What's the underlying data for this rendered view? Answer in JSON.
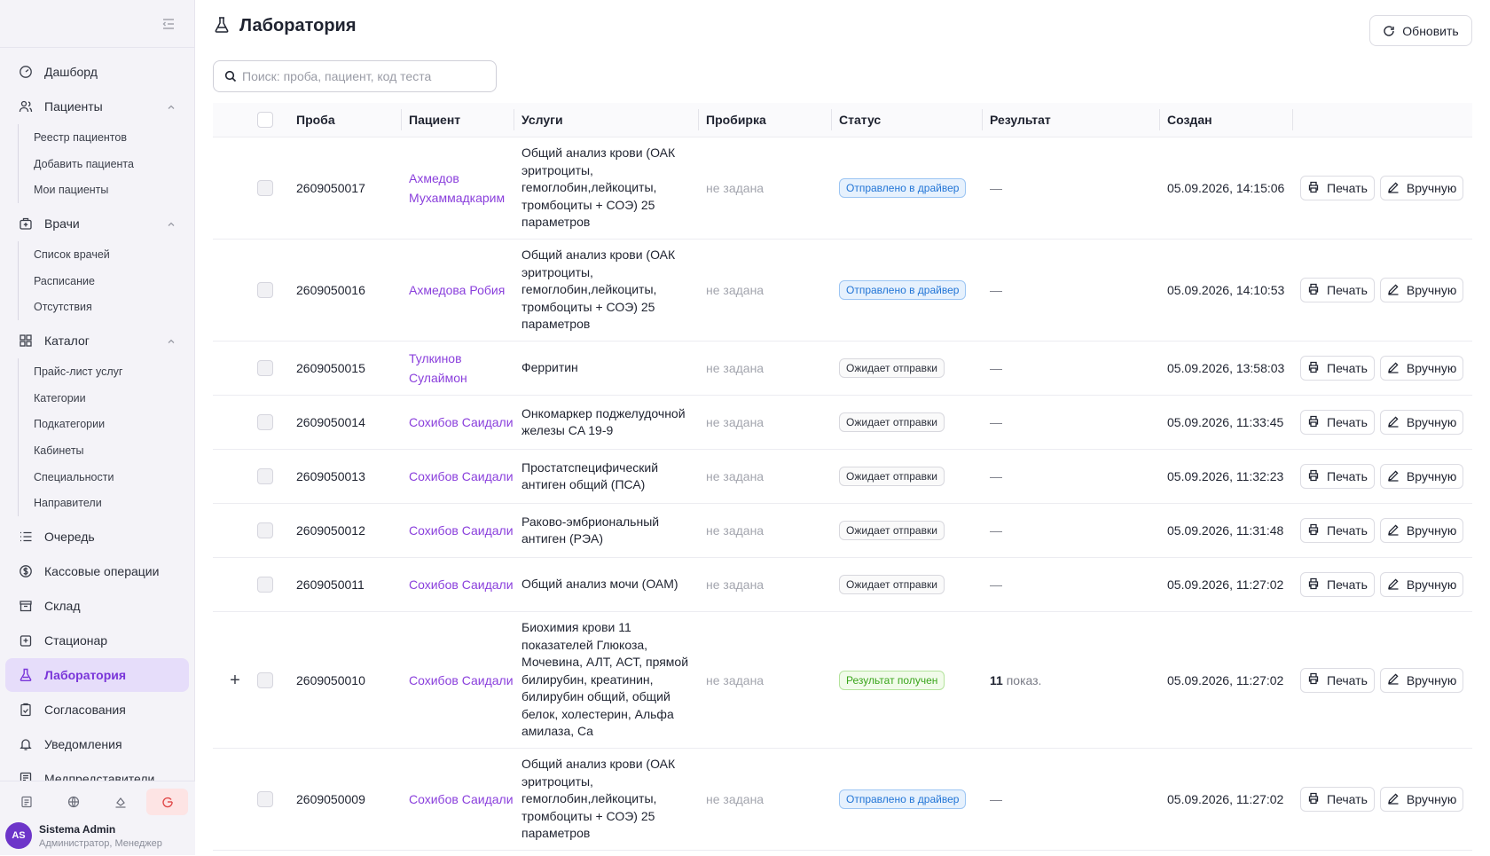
{
  "sidebar": {
    "items": [
      {
        "label": "Дашборд",
        "icon": "gauge-icon"
      },
      {
        "label": "Пациенты",
        "icon": "users-icon",
        "expanded": true,
        "sub": [
          "Реестр пациентов",
          "Добавить пациента",
          "Мои пациенты"
        ]
      },
      {
        "label": "Врачи",
        "icon": "medical-bag-icon",
        "expanded": true,
        "sub": [
          "Список врачей",
          "Расписание",
          "Отсутствия"
        ]
      },
      {
        "label": "Каталог",
        "icon": "grid-icon",
        "expanded": true,
        "sub": [
          "Прайс-лист услуг",
          "Категории",
          "Подкатегории",
          "Кабинеты",
          "Специальности",
          "Направители"
        ]
      },
      {
        "label": "Очередь",
        "icon": "list-icon"
      },
      {
        "label": "Кассовые операции",
        "icon": "dollar-icon"
      },
      {
        "label": "Склад",
        "icon": "archive-icon"
      },
      {
        "label": "Стационар",
        "icon": "hospital-icon"
      },
      {
        "label": "Лаборатория",
        "icon": "flask-icon",
        "active": true
      },
      {
        "label": "Согласования",
        "icon": "clipboard-check-icon"
      },
      {
        "label": "Уведомления",
        "icon": "bell-icon"
      },
      {
        "label": "Медпредставители",
        "icon": "document-user-icon"
      }
    ],
    "user": {
      "initials": "AS",
      "name": "Sistema Admin",
      "role": "Администратор, Менеджер"
    }
  },
  "header": {
    "title": "Лаборатория",
    "refresh_label": "Обновить"
  },
  "search": {
    "placeholder": "Поиск: проба, пациент, код теста"
  },
  "table": {
    "columns": [
      "Проба",
      "Пациент",
      "Услуги",
      "Пробирка",
      "Статус",
      "Результат",
      "Создан"
    ],
    "print_label": "Печать",
    "manual_label": "Вручную",
    "rows": [
      {
        "probe": "2609050017",
        "patient": "Ахмедов Мухаммадкарим",
        "services": "Общий анализ крови (ОАК эритроциты, гемоглобин,лейкоциты, тромбоциты + СОЭ) 25 параметров",
        "tube": "не задана",
        "status": "Отправлено в драйвер",
        "status_type": "blue",
        "result": "—",
        "result_count": "",
        "created": "05.09.2026, 14:15:06",
        "expandable": false
      },
      {
        "probe": "2609050016",
        "patient": "Ахмедова Робия",
        "services": "Общий анализ крови (ОАК эритроциты, гемоглобин,лейкоциты, тромбоциты + СОЭ) 25 параметров",
        "tube": "не задана",
        "status": "Отправлено в драйвер",
        "status_type": "blue",
        "result": "—",
        "result_count": "",
        "created": "05.09.2026, 14:10:53",
        "expandable": false
      },
      {
        "probe": "2609050015",
        "patient": "Тулкинов Сулаймон",
        "services": "Ферритин",
        "tube": "не задана",
        "status": "Ожидает отправки",
        "status_type": "gray",
        "result": "—",
        "result_count": "",
        "created": "05.09.2026, 13:58:03",
        "expandable": false
      },
      {
        "probe": "2609050014",
        "patient": "Сохибов Саидали",
        "services": "Онкомаркер поджелудочной железы CA 19-9",
        "tube": "не задана",
        "status": "Ожидает отправки",
        "status_type": "gray",
        "result": "—",
        "result_count": "",
        "created": "05.09.2026, 11:33:45",
        "expandable": false
      },
      {
        "probe": "2609050013",
        "patient": "Сохибов Саидали",
        "services": "Простатспецифический антиген общий (ПСА)",
        "tube": "не задана",
        "status": "Ожидает отправки",
        "status_type": "gray",
        "result": "—",
        "result_count": "",
        "created": "05.09.2026, 11:32:23",
        "expandable": false
      },
      {
        "probe": "2609050012",
        "patient": "Сохибов Саидали",
        "services": "Раково-эмбриональный антиген (РЭА)",
        "tube": "не задана",
        "status": "Ожидает отправки",
        "status_type": "gray",
        "result": "—",
        "result_count": "",
        "created": "05.09.2026, 11:31:48",
        "expandable": false
      },
      {
        "probe": "2609050011",
        "patient": "Сохибов Саидали",
        "services": "Общий анализ мочи (ОАМ)",
        "tube": "не задана",
        "status": "Ожидает отправки",
        "status_type": "gray",
        "result": "—",
        "result_count": "",
        "created": "05.09.2026, 11:27:02",
        "expandable": false
      },
      {
        "probe": "2609050010",
        "patient": "Сохибов Саидали",
        "services": "Биохимия крови 11 показателей Глюкоза, Мочевина, АЛТ, АСТ, прямой билирубин, креатинин, билирубин общий, общий белок, холестерин, Альфа амилаза, Ca",
        "tube": "не задана",
        "status": "Результат получен",
        "status_type": "green",
        "result": "показ.",
        "result_count": "11",
        "created": "05.09.2026, 11:27:02",
        "expandable": true
      },
      {
        "probe": "2609050009",
        "patient": "Сохибов Саидали",
        "services": "Общий анализ крови (ОАК эритроциты, гемоглобин,лейкоциты, тромбоциты + СОЭ) 25 параметров",
        "tube": "не задана",
        "status": "Отправлено в драйвер",
        "status_type": "blue",
        "result": "—",
        "result_count": "",
        "created": "05.09.2026, 11:27:02",
        "expandable": false
      }
    ]
  }
}
